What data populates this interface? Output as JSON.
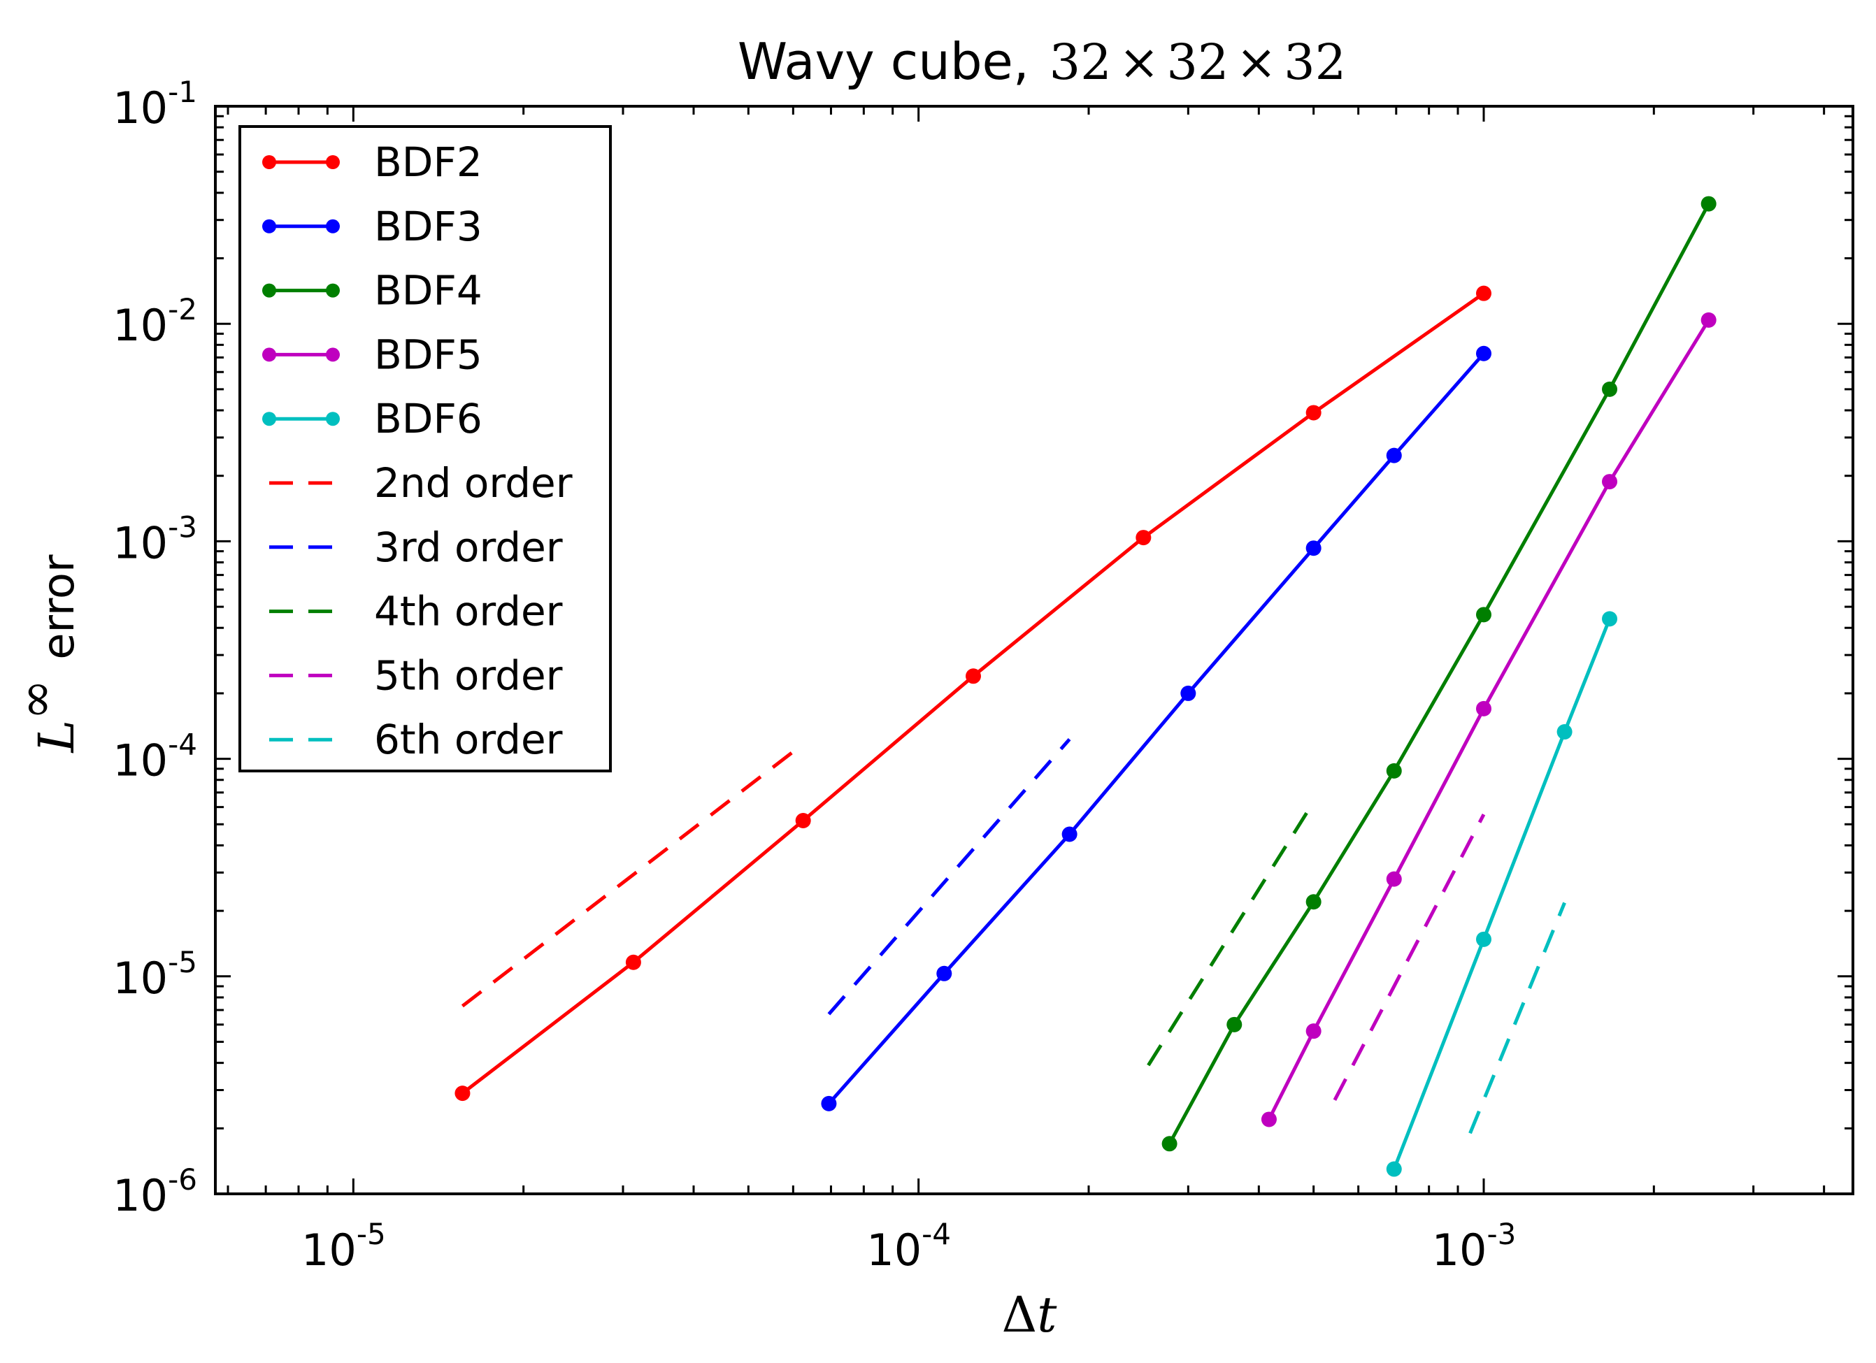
{
  "chart_data": {
    "type": "line",
    "scale": "log-log",
    "title": {
      "text": "Wavy cube, ",
      "math": [
        "32",
        "×",
        "32",
        "×",
        "32"
      ]
    },
    "xlabel": {
      "symbol": "Δ",
      "var": "t"
    },
    "ylabel": {
      "symbol": "L",
      "superscript": "∞",
      "text": "error"
    },
    "xlim": [
      5.7e-06,
      0.0045
    ],
    "ylim": [
      1e-06,
      0.1
    ],
    "x_ticks": [
      {
        "value": 1e-05,
        "base": "10",
        "exp": "-5"
      },
      {
        "value": 0.0001,
        "base": "10",
        "exp": "-4"
      },
      {
        "value": 0.001,
        "base": "10",
        "exp": "-3"
      }
    ],
    "y_ticks": [
      {
        "value": 1e-06,
        "base": "10",
        "exp": "-6"
      },
      {
        "value": 1e-05,
        "base": "10",
        "exp": "-5"
      },
      {
        "value": 0.0001,
        "base": "10",
        "exp": "-4"
      },
      {
        "value": 0.001,
        "base": "10",
        "exp": "-3"
      },
      {
        "value": 0.01,
        "base": "10",
        "exp": "-2"
      },
      {
        "value": 0.1,
        "base": "10",
        "exp": "-1"
      }
    ],
    "legend_position": "top-left",
    "series": [
      {
        "name": "BDF2",
        "color": "#ff0000",
        "style": "solid-marker",
        "x": [
          1.56e-05,
          3.13e-05,
          6.25e-05,
          0.000125,
          0.00025,
          0.0005,
          0.001
        ],
        "y": [
          2.9e-06,
          1.16e-05,
          5.2e-05,
          0.00024,
          0.00104,
          0.0039,
          0.0138
        ]
      },
      {
        "name": "BDF3",
        "color": "#0000ff",
        "style": "solid-marker",
        "x": [
          6.94e-05,
          0.000111,
          0.000185,
          0.0003,
          0.0005,
          0.000694,
          0.001
        ],
        "y": [
          2.6e-06,
          1.03e-05,
          4.5e-05,
          0.0002,
          0.00093,
          0.00248,
          0.0073
        ]
      },
      {
        "name": "BDF4",
        "color": "#007f00",
        "style": "solid-marker",
        "x": [
          0.000278,
          0.000362,
          0.0005,
          0.000694,
          0.001,
          0.00167,
          0.0025
        ],
        "y": [
          1.7e-06,
          6e-06,
          2.2e-05,
          8.8e-05,
          0.00046,
          0.005,
          0.0356
        ]
      },
      {
        "name": "BDF5",
        "color": "#bf00bf",
        "style": "solid-marker",
        "x": [
          0.000417,
          0.0005,
          0.000694,
          0.001,
          0.00167,
          0.0025
        ],
        "y": [
          2.2e-06,
          5.6e-06,
          2.8e-05,
          0.00017,
          0.00188,
          0.0104
        ]
      },
      {
        "name": "BDF6",
        "color": "#00bfbf",
        "style": "solid-marker",
        "x": [
          0.000694,
          0.001,
          0.00139,
          0.00167
        ],
        "y": [
          1.3e-06,
          1.48e-05,
          0.000133,
          0.00044
        ]
      },
      {
        "name": "2nd order",
        "color": "#ff0000",
        "style": "dashed",
        "x": [
          1.56e-05,
          6.25e-05
        ],
        "y": [
          7.3e-06,
          0.000117
        ]
      },
      {
        "name": "3rd order",
        "color": "#0000ff",
        "style": "dashed",
        "x": [
          6.94e-05,
          0.000185
        ],
        "y": [
          6.7e-06,
          0.000123
        ]
      },
      {
        "name": "4th order",
        "color": "#007f00",
        "style": "dashed",
        "x": [
          0.000255,
          0.0005
        ],
        "y": [
          3.9e-06,
          6.34e-05
        ]
      },
      {
        "name": "5th order",
        "color": "#bf00bf",
        "style": "dashed",
        "x": [
          0.000545,
          0.001
        ],
        "y": [
          2.7e-06,
          5.55e-05
        ]
      },
      {
        "name": "6th order",
        "color": "#00bfbf",
        "style": "dashed",
        "x": [
          0.000946,
          0.00139
        ],
        "y": [
          1.9e-06,
          2.18e-05
        ]
      }
    ]
  }
}
